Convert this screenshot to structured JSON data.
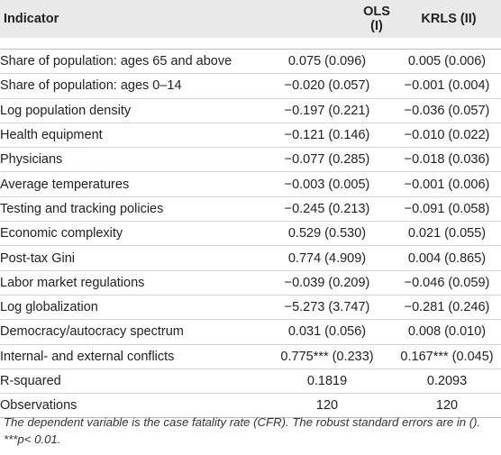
{
  "table": {
    "headers": [
      "Indicator",
      "OLS (I)",
      "KRLS (II)"
    ],
    "rows": [
      [
        "Share of population: ages 65 and above",
        "0.075 (0.096)",
        "0.005 (0.006)"
      ],
      [
        "Share of population: ages 0–14",
        "−0.020 (0.057)",
        "−0.001 (0.004)"
      ],
      [
        "Log population density",
        "−0.197 (0.221)",
        "−0.036 (0.057)"
      ],
      [
        "Health equipment",
        "−0.121 (0.146)",
        "−0.010 (0.022)"
      ],
      [
        "Physicians",
        "−0.077 (0.285)",
        "−0.018 (0.036)"
      ],
      [
        "Average temperatures",
        "−0.003 (0.005)",
        "−0.001 (0.006)"
      ],
      [
        "Testing and tracking policies",
        "−0.245 (0.213)",
        "−0.091 (0.058)"
      ],
      [
        "Economic complexity",
        "0.529 (0.530)",
        "0.021 (0.055)"
      ],
      [
        "Post-tax Gini",
        "0.774 (4.909)",
        "0.004 (0.865)"
      ],
      [
        "Labor market regulations",
        "−0.039 (0.209)",
        "−0.046 (0.059)"
      ],
      [
        "Log globalization",
        "−5.273 (3.747)",
        "−0.281 (0.246)"
      ],
      [
        "Democracy/autocracy spectrum",
        "0.031 (0.056)",
        "0.008 (0.010)"
      ],
      [
        "Internal- and external conflicts",
        "0.775*** (0.233)",
        "0.167*** (0.045)"
      ],
      [
        "R-squared",
        "0.1819",
        "0.2093"
      ],
      [
        "Observations",
        "120",
        "120"
      ]
    ]
  },
  "note": {
    "line1": "The dependent variable is the case fatality rate (CFR). The robust standard errors are in ().",
    "line2": "***p< 0.01."
  }
}
